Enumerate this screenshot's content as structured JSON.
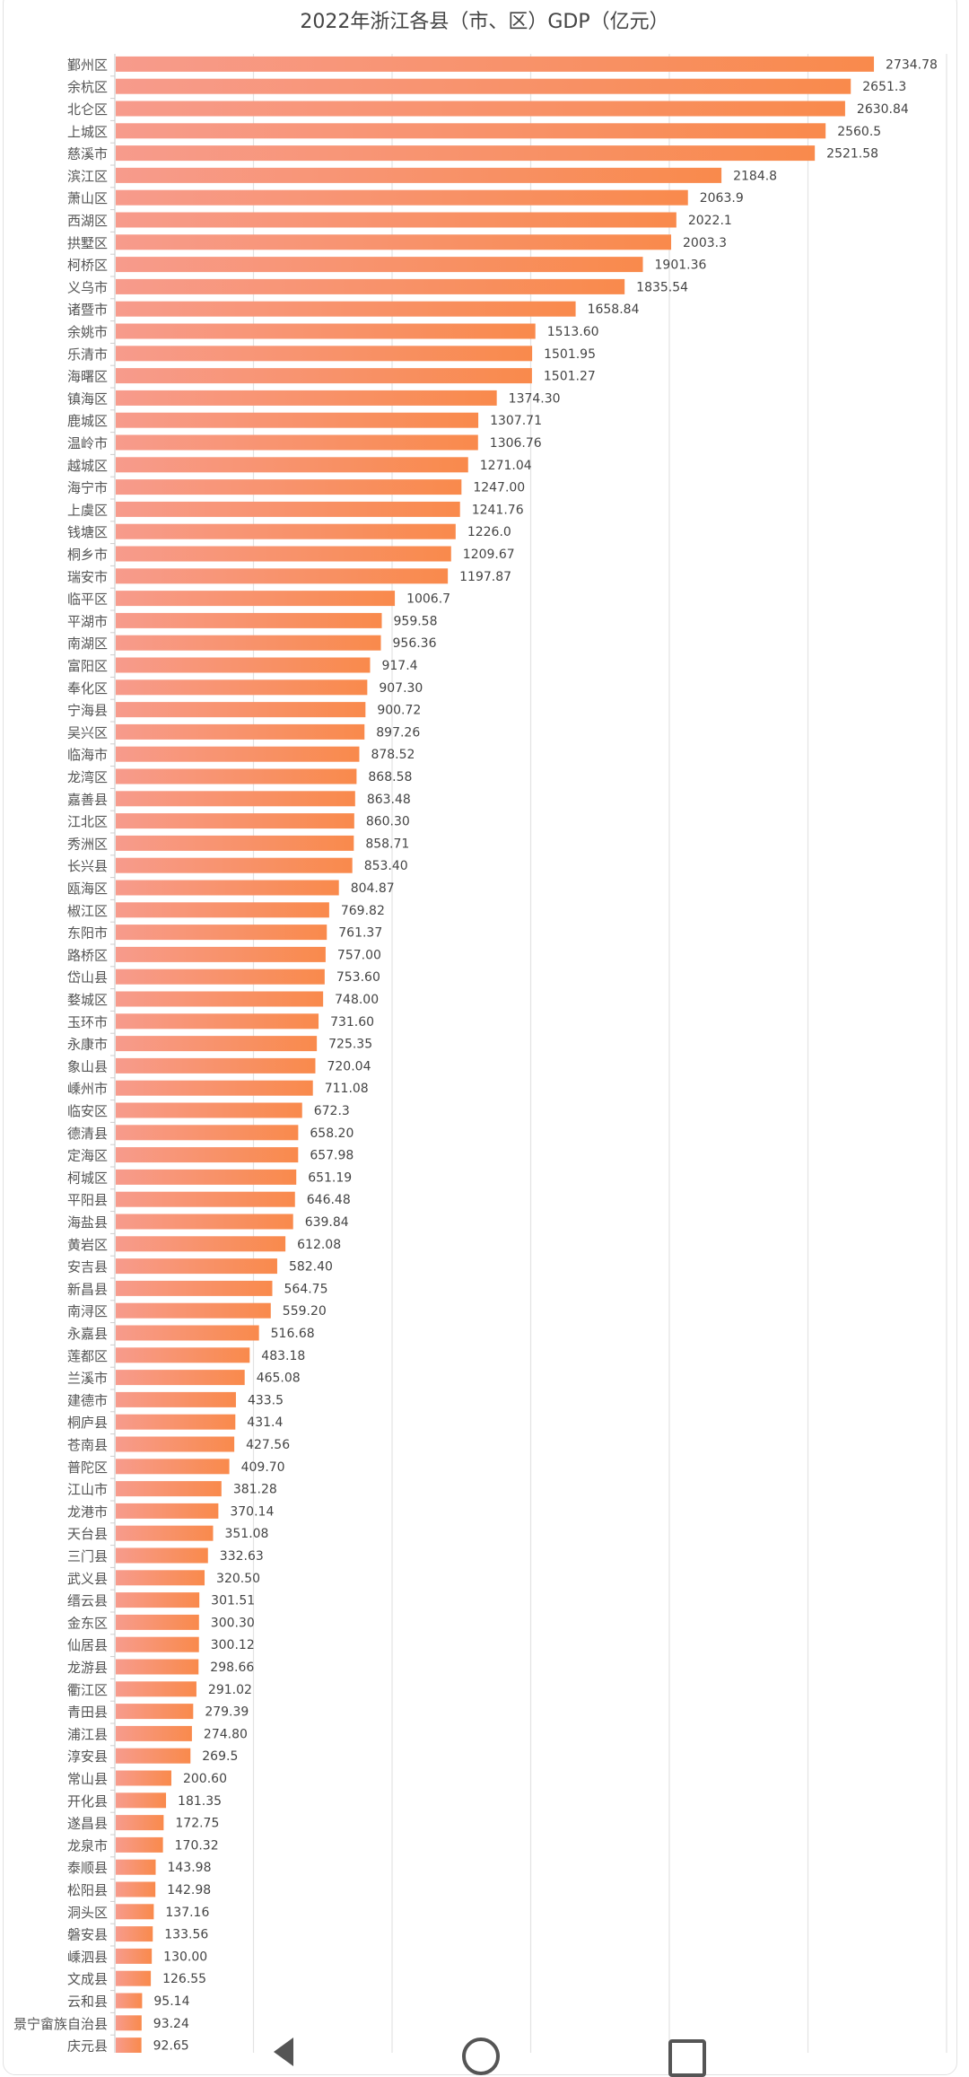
{
  "chart_data": {
    "type": "bar",
    "orientation": "horizontal",
    "title": "2022年浙江各县（市、区）GDP（亿元）",
    "xlim": [
      0,
      3000
    ],
    "grid": true,
    "bar_color": {
      "start": "#f79b8c",
      "end": "#f98a4c"
    },
    "categories": [
      "鄞州区",
      "余杭区",
      "北仑区",
      "上城区",
      "慈溪市",
      "滨江区",
      "萧山区",
      "西湖区",
      "拱墅区",
      "柯桥区",
      "义乌市",
      "诸暨市",
      "余姚市",
      "乐清市",
      "海曙区",
      "镇海区",
      "鹿城区",
      "温岭市",
      "越城区",
      "海宁市",
      "上虞区",
      "钱塘区",
      "桐乡市",
      "瑞安市",
      "临平区",
      "平湖市",
      "南湖区",
      "富阳区",
      "奉化区",
      "宁海县",
      "吴兴区",
      "临海市",
      "龙湾区",
      "嘉善县",
      "江北区",
      "秀洲区",
      "长兴县",
      "瓯海区",
      "椒江区",
      "东阳市",
      "路桥区",
      "岱山县",
      "婺城区",
      "玉环市",
      "永康市",
      "象山县",
      "嵊州市",
      "临安区",
      "德清县",
      "定海区",
      "柯城区",
      "平阳县",
      "海盐县",
      "黄岩区",
      "安吉县",
      "新昌县",
      "南浔区",
      "永嘉县",
      "莲都区",
      "兰溪市",
      "建德市",
      "桐庐县",
      "苍南县",
      "普陀区",
      "江山市",
      "龙港市",
      "天台县",
      "三门县",
      "武义县",
      "缙云县",
      "金东区",
      "仙居县",
      "龙游县",
      "衢江区",
      "青田县",
      "浦江县",
      "淳安县",
      "常山县",
      "开化县",
      "遂昌县",
      "龙泉市",
      "泰顺县",
      "松阳县",
      "洞头区",
      "磐安县",
      "嵊泗县",
      "文成县",
      "云和县",
      "景宁畲族自治县",
      "庆元县"
    ],
    "values": [
      2734.78,
      2651.3,
      2630.84,
      2560.5,
      2521.58,
      2184.8,
      2063.9,
      2022.1,
      2003.3,
      1901.36,
      1835.54,
      1658.84,
      1513.6,
      1501.95,
      1501.27,
      1374.3,
      1307.71,
      1306.76,
      1271.04,
      1247.0,
      1241.76,
      1226.0,
      1209.67,
      1197.87,
      1006.7,
      959.58,
      956.36,
      917.4,
      907.3,
      900.72,
      897.26,
      878.52,
      868.58,
      863.48,
      860.3,
      858.71,
      853.4,
      804.87,
      769.82,
      761.37,
      757.0,
      753.6,
      748.0,
      731.6,
      725.35,
      720.04,
      711.08,
      672.3,
      658.2,
      657.98,
      651.19,
      646.48,
      639.84,
      612.08,
      582.4,
      564.75,
      559.2,
      516.68,
      483.18,
      465.08,
      433.5,
      431.4,
      427.56,
      409.7,
      381.28,
      370.14,
      351.08,
      332.63,
      320.5,
      301.51,
      300.3,
      300.12,
      298.66,
      291.02,
      279.39,
      274.8,
      269.5,
      200.6,
      181.35,
      172.75,
      170.32,
      143.98,
      142.98,
      137.16,
      133.56,
      130.0,
      126.55,
      95.14,
      93.24,
      92.65
    ],
    "data_labels": [
      "2734.78",
      "2651.3",
      "2630.84",
      "2560.5",
      "2521.58",
      "2184.8",
      "2063.9",
      "2022.1",
      "2003.3",
      "1901.36",
      "1835.54",
      "1658.84",
      "1513.60",
      "1501.95",
      "1501.27",
      "1374.30",
      "1307.71",
      "1306.76",
      "1271.04",
      "1247.00",
      "1241.76",
      "1226.0",
      "1209.67",
      "1197.87",
      "1006.7",
      "959.58",
      "956.36",
      "917.4",
      "907.30",
      "900.72",
      "897.26",
      "878.52",
      "868.58",
      "863.48",
      "860.30",
      "858.71",
      "853.40",
      "804.87",
      "769.82",
      "761.37",
      "757.00",
      "753.60",
      "748.00",
      "731.60",
      "725.35",
      "720.04",
      "711.08",
      "672.3",
      "658.20",
      "657.98",
      "651.19",
      "646.48",
      "639.84",
      "612.08",
      "582.40",
      "564.75",
      "559.20",
      "516.68",
      "483.18",
      "465.08",
      "433.5",
      "431.4",
      "427.56",
      "409.70",
      "381.28",
      "370.14",
      "351.08",
      "332.63",
      "320.50",
      "301.51",
      "300.30",
      "300.12",
      "298.66",
      "291.02",
      "279.39",
      "274.80",
      "269.5",
      "200.60",
      "181.35",
      "172.75",
      "170.32",
      "143.98",
      "142.98",
      "137.16",
      "133.56",
      "130.00",
      "126.55",
      "95.14",
      "93.24",
      "92.65"
    ]
  },
  "system_nav": {
    "back": "back-icon",
    "home": "home-icon",
    "recents": "recents-icon"
  }
}
